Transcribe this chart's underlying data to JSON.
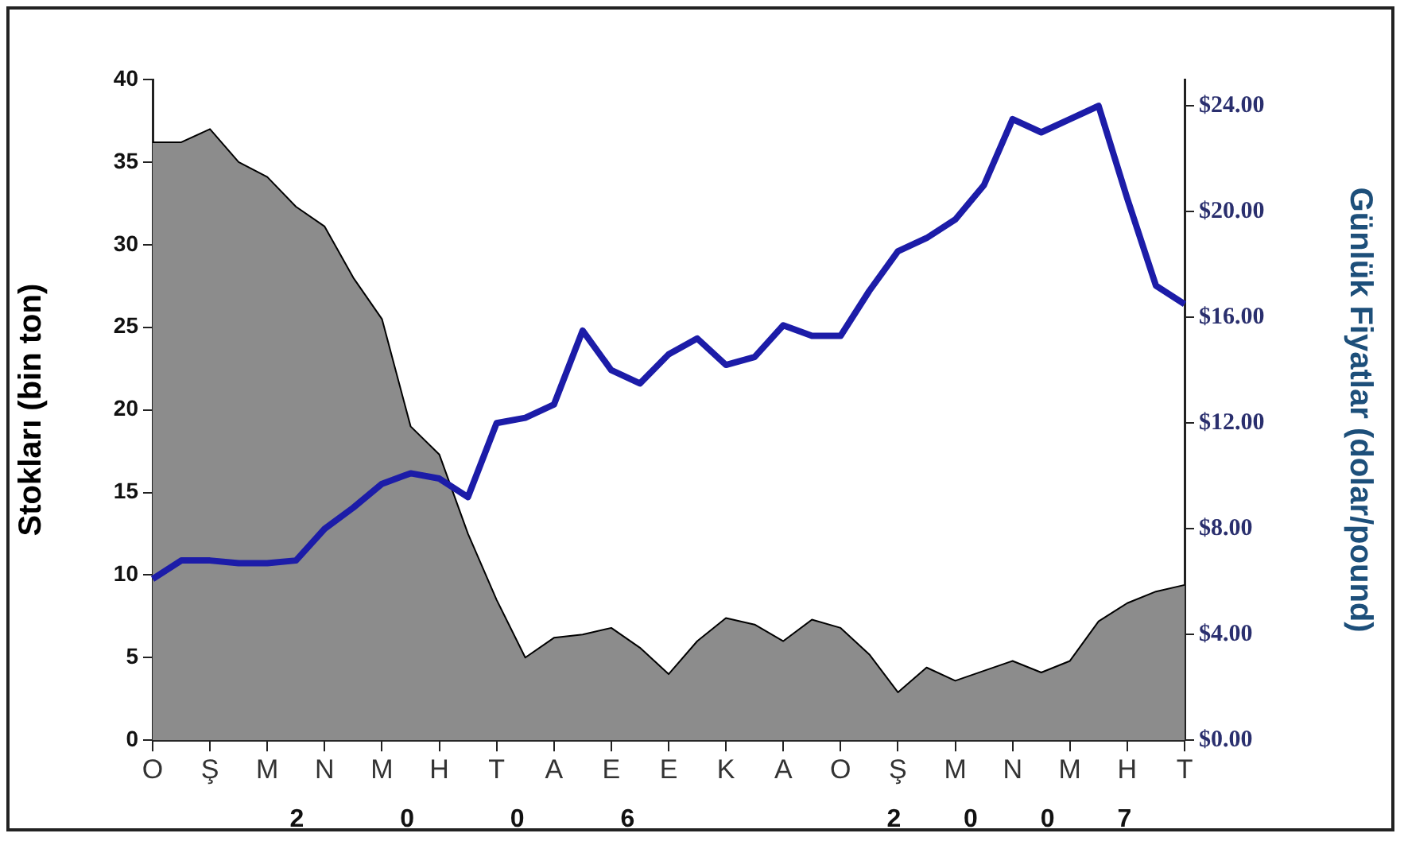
{
  "chart_data": {
    "type": "line",
    "ylabel": "Stokları (bin ton)",
    "y2label": "Günlük Fiyatlar (dolar/pound)",
    "categories": [
      "O",
      null,
      "Ş",
      null,
      "M",
      null,
      "N",
      null,
      "M",
      null,
      "H",
      null,
      "T",
      null,
      "A",
      null,
      "E",
      null,
      "E",
      null,
      "K",
      null,
      "A",
      null,
      "O",
      null,
      "Ş",
      null,
      "M",
      null,
      "N",
      null,
      "M",
      null,
      "H",
      null,
      "T"
    ],
    "ylim": [
      0,
      40
    ],
    "yticks": [
      0,
      5,
      10,
      15,
      20,
      25,
      30,
      35,
      40
    ],
    "y2lim": [
      0,
      25
    ],
    "y2ticks": [
      {
        "value": 0,
        "label": "$0.00"
      },
      {
        "value": 4,
        "label": "$4.00"
      },
      {
        "value": 8,
        "label": "$8.00"
      },
      {
        "value": 12,
        "label": "$12.00"
      },
      {
        "value": 16,
        "label": "$16.00"
      },
      {
        "value": 20,
        "label": "$20.00"
      },
      {
        "value": 24,
        "label": "$24.00"
      }
    ],
    "annotations": [
      "2 0 0 6",
      "2 0 0 7"
    ],
    "series": [
      {
        "type": "area",
        "color": "#8c8c8c",
        "values": [
          36.2,
          36.2,
          37.0,
          35.0,
          34.1,
          32.3,
          31.1,
          28.0,
          25.5,
          19.0,
          17.3,
          12.5,
          8.5,
          5.0,
          6.2,
          6.4,
          6.8,
          5.6,
          4.0,
          6.0,
          7.4,
          7.0,
          6.0,
          7.3,
          6.8,
          5.2,
          2.9,
          4.4,
          3.6,
          4.2,
          4.8,
          4.1,
          4.8,
          7.2,
          8.3,
          9.0,
          9.4
        ]
      },
      {
        "type": "line",
        "axis": "y2",
        "color": "#1c1ca8",
        "values": [
          6.1,
          6.8,
          6.8,
          6.7,
          6.7,
          6.8,
          8.0,
          8.8,
          9.7,
          10.1,
          9.9,
          9.2,
          12.0,
          12.2,
          12.7,
          15.5,
          14.0,
          13.5,
          14.6,
          15.2,
          14.2,
          14.5,
          15.7,
          15.3,
          15.3,
          17.0,
          18.5,
          19.0,
          19.7,
          21.0,
          23.5,
          23.0,
          23.5,
          24.0,
          20.5,
          17.2,
          16.5
        ]
      }
    ]
  }
}
